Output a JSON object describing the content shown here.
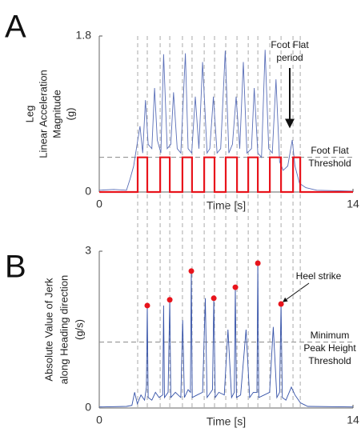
{
  "chart_data": [
    {
      "type": "line",
      "panel_label": "A",
      "ylabel_lines": [
        "Leg",
        "Linear Acceleration",
        "Magnitude",
        "(g)"
      ],
      "xlabel": "Time [s]",
      "xlim": [
        0,
        14
      ],
      "xticks": [
        0,
        14
      ],
      "ylim": [
        0,
        1.8
      ],
      "yticks": [
        0,
        1.8
      ],
      "threshold": 0.4,
      "threshold_lines": [
        "Foot Flat",
        "Threshold"
      ],
      "arrow_lines": [
        "Foot Flat",
        "period"
      ],
      "event_lines": [
        2.12,
        2.65,
        3.36,
        3.89,
        4.59,
        5.12,
        5.79,
        6.36,
        6.98,
        7.6,
        8.22,
        8.75,
        9.41,
        10.03,
        10.69,
        11.09
      ],
      "series": [
        {
          "type": "line",
          "color": "#5a6fb8",
          "x": [
            0,
            0.8,
            1.5,
            1.7,
            1.9,
            2.05,
            2.25,
            2.4,
            2.55,
            2.7,
            2.9,
            3.05,
            3.2,
            3.4,
            3.55,
            3.75,
            3.95,
            4.1,
            4.3,
            4.5,
            4.75,
            4.9,
            5.1,
            5.3,
            5.5,
            5.7,
            5.95,
            6.1,
            6.3,
            6.5,
            6.7,
            6.95,
            7.15,
            7.35,
            7.55,
            7.75,
            7.95,
            8.15,
            8.4,
            8.55,
            8.75,
            8.95,
            9.15,
            9.35,
            9.55,
            9.75,
            9.95,
            10.15,
            10.4,
            10.65,
            10.8,
            11.05,
            11.4,
            12,
            14
          ],
          "values": [
            0.02,
            0.03,
            0.02,
            0.15,
            0.3,
            0.5,
            0.76,
            0.45,
            1.06,
            0.55,
            0.5,
            1.2,
            0.6,
            0.45,
            1.59,
            0.5,
            0.55,
            1.15,
            0.5,
            0.45,
            1.6,
            0.5,
            0.45,
            1.1,
            0.5,
            1.5,
            0.45,
            0.5,
            1.1,
            0.45,
            0.5,
            1.63,
            0.45,
            0.55,
            1.1,
            0.5,
            1.5,
            0.45,
            0.5,
            1.2,
            0.45,
            0.4,
            1.64,
            0.5,
            0.45,
            1.3,
            0.35,
            0.25,
            0.3,
            0.6,
            0.3,
            0.1,
            0.05,
            0.02,
            0.01
          ]
        },
        {
          "type": "line",
          "color": "#e8141c",
          "x": [
            0,
            2.12,
            2.12,
            2.65,
            2.65,
            3.36,
            3.36,
            3.89,
            3.89,
            4.59,
            4.59,
            5.12,
            5.12,
            5.79,
            5.79,
            6.36,
            6.36,
            6.98,
            6.98,
            7.6,
            7.6,
            8.22,
            8.22,
            8.75,
            8.75,
            9.41,
            9.41,
            10.03,
            10.03,
            10.69,
            10.69,
            11.09,
            11.09,
            14
          ],
          "values": [
            0,
            0,
            0.4,
            0.4,
            0,
            0,
            0.4,
            0.4,
            0,
            0,
            0.4,
            0.4,
            0,
            0,
            0.4,
            0.4,
            0,
            0,
            0.4,
            0.4,
            0,
            0,
            0.4,
            0.4,
            0,
            0,
            0.4,
            0.4,
            0,
            0,
            0.4,
            0.4,
            0,
            0
          ]
        }
      ]
    },
    {
      "type": "line",
      "panel_label": "B",
      "ylabel_lines": [
        "Absolute Value of Jerk",
        "along Heading direction",
        "(g/s)"
      ],
      "xlabel": "Time [s]",
      "xlim": [
        0,
        14
      ],
      "xticks": [
        0,
        14
      ],
      "ylim": [
        0,
        3
      ],
      "yticks": [
        0,
        3
      ],
      "threshold": 1.26,
      "threshold_lines": [
        "Minimum",
        "Peak Height",
        "Threshold"
      ],
      "arrow_lines": [
        "Heel strike"
      ],
      "series": [
        {
          "type": "line",
          "color": "#3552a8",
          "x": [
            0,
            1.5,
            1.8,
            1.95,
            2.1,
            2.3,
            2.5,
            2.6,
            2.65,
            2.7,
            2.9,
            3.1,
            3.3,
            3.5,
            3.55,
            3.6,
            3.8,
            3.89,
            3.95,
            4.2,
            4.5,
            4.6,
            4.7,
            4.9,
            5.03,
            5.08,
            5.13,
            5.4,
            5.7,
            5.85,
            5.95,
            6.25,
            6.32,
            6.4,
            6.6,
            6.9,
            7.1,
            7.3,
            7.45,
            7.51,
            7.57,
            7.8,
            8.1,
            8.3,
            8.5,
            8.7,
            8.75,
            8.8,
            9.1,
            9.4,
            9.6,
            9.8,
            9.95,
            10.03,
            10.1,
            10.3,
            10.6,
            10.8,
            11.1,
            11.5,
            14
          ],
          "values": [
            0.02,
            0.03,
            0.05,
            0.3,
            0.08,
            0.25,
            0.15,
            0.4,
            1.96,
            0.2,
            0.15,
            0.3,
            0.2,
            0.25,
            1.96,
            0.2,
            0.3,
            2.07,
            0.2,
            0.3,
            0.2,
            1.68,
            0.2,
            0.35,
            0.3,
            2.62,
            0.2,
            0.25,
            0.3,
            2.1,
            0.2,
            0.35,
            2.1,
            0.2,
            0.3,
            0.25,
            1.5,
            0.2,
            0.3,
            2.31,
            0.2,
            0.25,
            1.5,
            0.2,
            0.3,
            0.3,
            2.77,
            0.2,
            0.25,
            0.3,
            1.55,
            0.2,
            0.3,
            1.99,
            0.2,
            0.15,
            0.4,
            0.25,
            0.1,
            0.03,
            0.02
          ]
        },
        {
          "type": "scatter",
          "color": "#e8141c",
          "x": [
            2.65,
            3.89,
            5.08,
            6.32,
            7.51,
            8.75,
            10.03
          ],
          "values": [
            1.96,
            2.07,
            2.62,
            2.1,
            2.31,
            2.77,
            1.99
          ]
        }
      ]
    }
  ]
}
